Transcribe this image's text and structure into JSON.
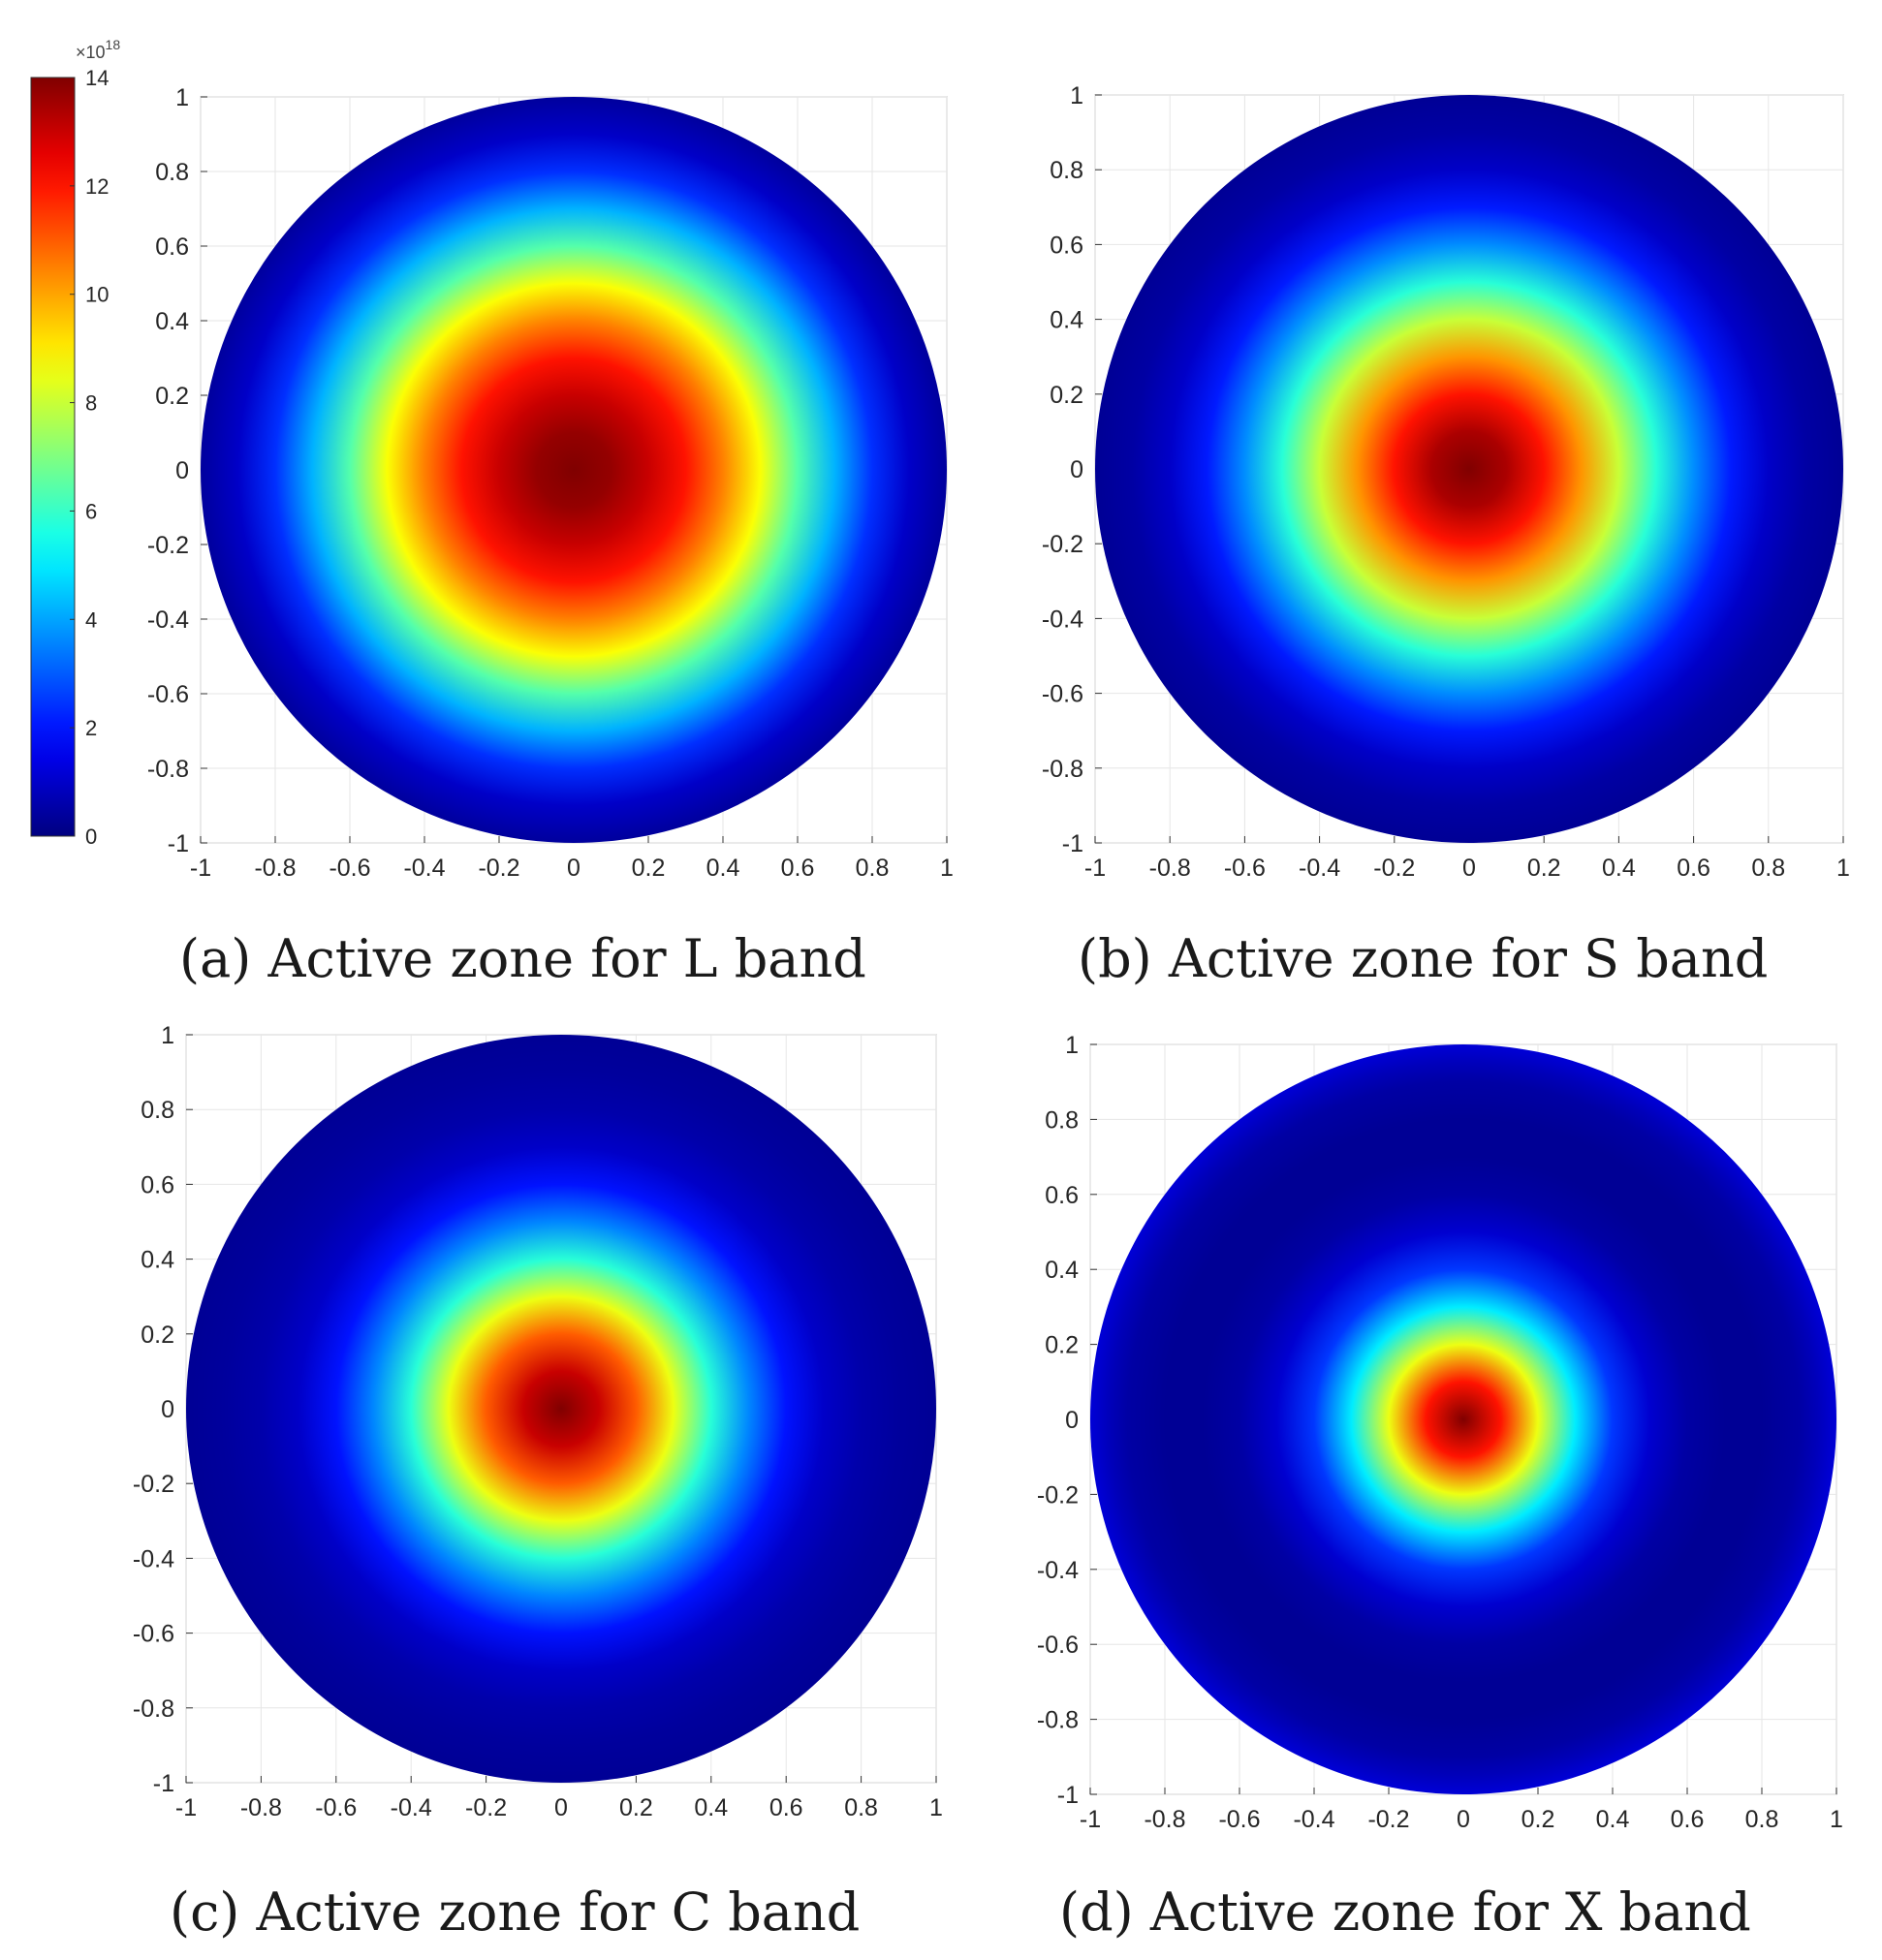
{
  "figure": {
    "colorbar": {
      "exponent": "×10",
      "exponent_power": "18",
      "ticks": [
        0,
        2,
        4,
        6,
        8,
        10,
        12,
        14
      ],
      "range": [
        0,
        14
      ],
      "colormap": "jet"
    }
  },
  "chart_data": [
    {
      "type": "heatmap",
      "caption": "(a) Active zone for L band",
      "xlim": [
        -1,
        1
      ],
      "ylim": [
        -1,
        1
      ],
      "xticks": [
        "-1",
        "-0.8",
        "-0.6",
        "-0.4",
        "-0.2",
        "0",
        "0.2",
        "0.4",
        "0.6",
        "0.8",
        "1"
      ],
      "yticks": [
        "1",
        "0.8",
        "0.6",
        "0.4",
        "0.2",
        "0",
        "-0.2",
        "-0.4",
        "-0.6",
        "-0.8",
        "-1"
      ],
      "grid": true,
      "domain": "unit disk",
      "radial_profile": {
        "r": [
          0,
          0.1,
          0.2,
          0.3,
          0.4,
          0.5,
          0.6,
          0.7,
          0.8,
          0.9,
          1.0
        ],
        "value_e18": [
          14.0,
          13.7,
          13.0,
          12.0,
          10.5,
          8.7,
          6.4,
          4.2,
          2.4,
          1.0,
          0.4
        ]
      }
    },
    {
      "type": "heatmap",
      "caption": "(b) Active zone for S band",
      "xlim": [
        -1,
        1
      ],
      "ylim": [
        -1,
        1
      ],
      "xticks": [
        "-1",
        "-0.8",
        "-0.6",
        "-0.4",
        "-0.2",
        "0",
        "0.2",
        "0.4",
        "0.6",
        "0.8",
        "1"
      ],
      "yticks": [
        "1",
        "0.8",
        "0.6",
        "0.4",
        "0.2",
        "0",
        "-0.2",
        "-0.4",
        "-0.6",
        "-0.8",
        "-1"
      ],
      "grid": true,
      "domain": "unit disk",
      "radial_profile": {
        "r": [
          0,
          0.1,
          0.2,
          0.3,
          0.4,
          0.5,
          0.6,
          0.7,
          0.8,
          0.9,
          1.0
        ],
        "value_e18": [
          14.0,
          13.4,
          12.0,
          10.2,
          8.0,
          5.8,
          3.7,
          2.1,
          1.0,
          0.5,
          0.3
        ]
      }
    },
    {
      "type": "heatmap",
      "caption": "(c) Active zone for C band",
      "xlim": [
        -1,
        1
      ],
      "ylim": [
        -1,
        1
      ],
      "xticks": [
        "-1",
        "-0.8",
        "-0.6",
        "-0.4",
        "-0.2",
        "0",
        "0.2",
        "0.4",
        "0.6",
        "0.8",
        "1"
      ],
      "yticks": [
        "1",
        "0.8",
        "0.6",
        "0.4",
        "0.2",
        "0",
        "-0.2",
        "-0.4",
        "-0.6",
        "-0.8",
        "-1"
      ],
      "grid": true,
      "domain": "unit disk",
      "radial_profile": {
        "r": [
          0,
          0.1,
          0.2,
          0.3,
          0.4,
          0.5,
          0.6,
          0.7,
          0.8,
          0.9,
          1.0
        ],
        "value_e18": [
          14.0,
          13.0,
          11.0,
          8.5,
          5.8,
          3.6,
          2.0,
          1.0,
          0.6,
          0.4,
          0.3
        ]
      }
    },
    {
      "type": "heatmap",
      "caption": "(d) Active zone for X band",
      "xlim": [
        -1,
        1
      ],
      "ylim": [
        -1,
        1
      ],
      "xticks": [
        "-1",
        "-0.8",
        "-0.6",
        "-0.4",
        "-0.2",
        "0",
        "0.2",
        "0.4",
        "0.6",
        "0.8",
        "1"
      ],
      "yticks": [
        "1",
        "0.8",
        "0.6",
        "0.4",
        "0.2",
        "0",
        "-0.2",
        "-0.4",
        "-0.6",
        "-0.8",
        "-1"
      ],
      "grid": true,
      "domain": "unit disk",
      "radial_profile": {
        "r": [
          0,
          0.1,
          0.2,
          0.3,
          0.4,
          0.5,
          0.6,
          0.7,
          0.8,
          0.9,
          0.95,
          1.0
        ],
        "value_e18": [
          14.0,
          12.0,
          8.5,
          5.0,
          2.5,
          1.1,
          0.5,
          0.3,
          0.3,
          0.5,
          0.8,
          1.2
        ]
      }
    }
  ]
}
